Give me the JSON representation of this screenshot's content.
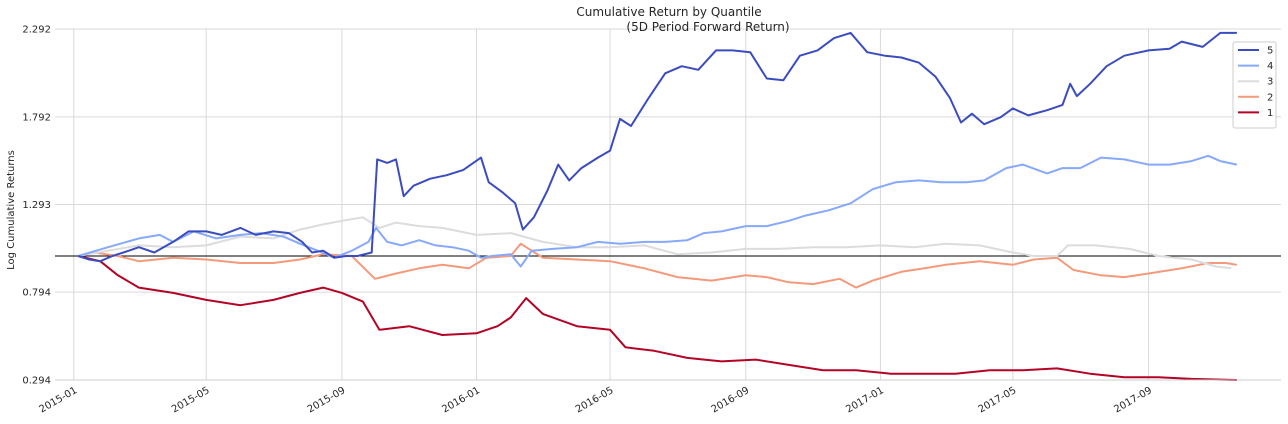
{
  "chart_data": {
    "type": "line",
    "title": "Cumulative Return by Quantile",
    "subtitle": "(5D Period Forward Return)",
    "xlabel": "",
    "ylabel": "Log Cumulative Returns",
    "x_tick_labels": [
      "2015-01",
      "2015-05",
      "2015-09",
      "2016-01",
      "2016-05",
      "2016-09",
      "2017-01",
      "2017-05",
      "2017-09"
    ],
    "y_tick_labels": [
      "0.294",
      "0.794",
      "1.293",
      "1.792",
      "2.292"
    ],
    "ylim": [
      0.294,
      2.292
    ],
    "xlim": [
      "2014-12-15",
      "2017-12-30"
    ],
    "grid": true,
    "legend_position": "top-right",
    "reference_line": 1.0,
    "series": [
      {
        "name": "5",
        "color": "#3b4cc0",
        "points": [
          [
            "2015-01-05",
            1.0
          ],
          [
            "2015-01-15",
            0.98
          ],
          [
            "2015-01-25",
            0.97
          ],
          [
            "2015-02-05",
            1.0
          ],
          [
            "2015-02-15",
            1.02
          ],
          [
            "2015-03-01",
            1.05
          ],
          [
            "2015-03-15",
            1.02
          ],
          [
            "2015-04-01",
            1.08
          ],
          [
            "2015-04-15",
            1.14
          ],
          [
            "2015-05-01",
            1.14
          ],
          [
            "2015-05-15",
            1.12
          ],
          [
            "2015-06-01",
            1.16
          ],
          [
            "2015-06-15",
            1.12
          ],
          [
            "2015-07-01",
            1.14
          ],
          [
            "2015-07-15",
            1.13
          ],
          [
            "2015-07-27",
            1.08
          ],
          [
            "2015-08-05",
            1.02
          ],
          [
            "2015-08-15",
            1.03
          ],
          [
            "2015-08-25",
            0.99
          ],
          [
            "2015-09-05",
            1.0
          ],
          [
            "2015-09-15",
            1.0
          ],
          [
            "2015-09-28",
            1.02
          ],
          [
            "2015-10-03",
            1.55
          ],
          [
            "2015-10-12",
            1.53
          ],
          [
            "2015-10-20",
            1.55
          ],
          [
            "2015-10-27",
            1.34
          ],
          [
            "2015-11-05",
            1.4
          ],
          [
            "2015-11-20",
            1.44
          ],
          [
            "2015-12-05",
            1.46
          ],
          [
            "2015-12-20",
            1.49
          ],
          [
            "2016-01-05",
            1.56
          ],
          [
            "2016-01-12",
            1.42
          ],
          [
            "2016-01-25",
            1.36
          ],
          [
            "2016-02-05",
            1.3
          ],
          [
            "2016-02-12",
            1.15
          ],
          [
            "2016-02-22",
            1.22
          ],
          [
            "2016-03-05",
            1.37
          ],
          [
            "2016-03-15",
            1.52
          ],
          [
            "2016-03-25",
            1.43
          ],
          [
            "2016-04-05",
            1.5
          ],
          [
            "2016-04-20",
            1.56
          ],
          [
            "2016-05-01",
            1.6
          ],
          [
            "2016-05-10",
            1.78
          ],
          [
            "2016-05-20",
            1.74
          ],
          [
            "2016-06-05",
            1.9
          ],
          [
            "2016-06-20",
            2.04
          ],
          [
            "2016-07-05",
            2.08
          ],
          [
            "2016-07-20",
            2.06
          ],
          [
            "2016-08-05",
            2.17
          ],
          [
            "2016-08-20",
            2.17
          ],
          [
            "2016-09-05",
            2.16
          ],
          [
            "2016-09-20",
            2.01
          ],
          [
            "2016-10-05",
            2.0
          ],
          [
            "2016-10-20",
            2.14
          ],
          [
            "2016-11-05",
            2.17
          ],
          [
            "2016-11-20",
            2.24
          ],
          [
            "2016-12-05",
            2.27
          ],
          [
            "2016-12-20",
            2.16
          ],
          [
            "2017-01-05",
            2.14
          ],
          [
            "2017-01-20",
            2.13
          ],
          [
            "2017-02-05",
            2.1
          ],
          [
            "2017-02-20",
            2.02
          ],
          [
            "2017-03-05",
            1.9
          ],
          [
            "2017-03-15",
            1.76
          ],
          [
            "2017-03-25",
            1.81
          ],
          [
            "2017-04-05",
            1.75
          ],
          [
            "2017-04-20",
            1.79
          ],
          [
            "2017-05-01",
            1.84
          ],
          [
            "2017-05-15",
            1.8
          ],
          [
            "2017-06-01",
            1.83
          ],
          [
            "2017-06-15",
            1.86
          ],
          [
            "2017-06-22",
            1.98
          ],
          [
            "2017-06-28",
            1.91
          ],
          [
            "2017-07-10",
            1.98
          ],
          [
            "2017-07-25",
            2.08
          ],
          [
            "2017-08-10",
            2.14
          ],
          [
            "2017-09-01",
            2.17
          ],
          [
            "2017-09-20",
            2.18
          ],
          [
            "2017-10-01",
            2.22
          ],
          [
            "2017-10-20",
            2.19
          ],
          [
            "2017-11-05",
            2.27
          ],
          [
            "2017-11-20",
            2.27
          ]
        ]
      },
      {
        "name": "4",
        "color": "#86a9fc",
        "points": [
          [
            "2015-01-05",
            1.0
          ],
          [
            "2015-02-01",
            1.05
          ],
          [
            "2015-03-01",
            1.1
          ],
          [
            "2015-03-20",
            1.12
          ],
          [
            "2015-04-01",
            1.08
          ],
          [
            "2015-04-20",
            1.14
          ],
          [
            "2015-05-10",
            1.1
          ],
          [
            "2015-06-01",
            1.12
          ],
          [
            "2015-06-20",
            1.13
          ],
          [
            "2015-07-10",
            1.11
          ],
          [
            "2015-07-25",
            1.07
          ],
          [
            "2015-08-10",
            1.03
          ],
          [
            "2015-08-25",
            0.99
          ],
          [
            "2015-09-10",
            1.03
          ],
          [
            "2015-09-25",
            1.08
          ],
          [
            "2015-10-02",
            1.16
          ],
          [
            "2015-10-12",
            1.08
          ],
          [
            "2015-10-25",
            1.06
          ],
          [
            "2015-11-10",
            1.09
          ],
          [
            "2015-11-25",
            1.06
          ],
          [
            "2015-12-10",
            1.05
          ],
          [
            "2015-12-25",
            1.03
          ],
          [
            "2016-01-05",
            0.99
          ],
          [
            "2016-01-15",
            1.0
          ],
          [
            "2016-02-01",
            1.01
          ],
          [
            "2016-02-10",
            0.94
          ],
          [
            "2016-02-20",
            1.03
          ],
          [
            "2016-03-10",
            1.04
          ],
          [
            "2016-04-01",
            1.05
          ],
          [
            "2016-04-20",
            1.08
          ],
          [
            "2016-05-10",
            1.07
          ],
          [
            "2016-06-01",
            1.08
          ],
          [
            "2016-06-20",
            1.08
          ],
          [
            "2016-07-10",
            1.09
          ],
          [
            "2016-07-25",
            1.13
          ],
          [
            "2016-08-10",
            1.14
          ],
          [
            "2016-09-01",
            1.17
          ],
          [
            "2016-09-20",
            1.17
          ],
          [
            "2016-10-10",
            1.2
          ],
          [
            "2016-10-25",
            1.23
          ],
          [
            "2016-11-15",
            1.26
          ],
          [
            "2016-12-05",
            1.3
          ],
          [
            "2016-12-25",
            1.38
          ],
          [
            "2017-01-15",
            1.42
          ],
          [
            "2017-02-05",
            1.43
          ],
          [
            "2017-02-25",
            1.42
          ],
          [
            "2017-03-20",
            1.42
          ],
          [
            "2017-04-05",
            1.43
          ],
          [
            "2017-04-25",
            1.5
          ],
          [
            "2017-05-10",
            1.52
          ],
          [
            "2017-06-01",
            1.47
          ],
          [
            "2017-06-15",
            1.5
          ],
          [
            "2017-07-01",
            1.5
          ],
          [
            "2017-07-20",
            1.56
          ],
          [
            "2017-08-10",
            1.55
          ],
          [
            "2017-09-01",
            1.52
          ],
          [
            "2017-09-20",
            1.52
          ],
          [
            "2017-10-10",
            1.54
          ],
          [
            "2017-10-25",
            1.57
          ],
          [
            "2017-11-05",
            1.54
          ],
          [
            "2017-11-20",
            1.52
          ]
        ]
      },
      {
        "name": "3",
        "color": "#dddcdc",
        "points": [
          [
            "2015-01-05",
            1.0
          ],
          [
            "2015-02-01",
            1.03
          ],
          [
            "2015-03-01",
            1.06
          ],
          [
            "2015-04-01",
            1.05
          ],
          [
            "2015-05-01",
            1.06
          ],
          [
            "2015-06-01",
            1.11
          ],
          [
            "2015-07-01",
            1.1
          ],
          [
            "2015-07-25",
            1.15
          ],
          [
            "2015-08-15",
            1.18
          ],
          [
            "2015-09-01",
            1.2
          ],
          [
            "2015-09-20",
            1.22
          ],
          [
            "2015-10-05",
            1.16
          ],
          [
            "2015-10-20",
            1.19
          ],
          [
            "2015-11-10",
            1.17
          ],
          [
            "2015-12-01",
            1.16
          ],
          [
            "2016-01-01",
            1.12
          ],
          [
            "2016-02-01",
            1.13
          ],
          [
            "2016-03-01",
            1.08
          ],
          [
            "2016-04-01",
            1.05
          ],
          [
            "2016-05-01",
            1.05
          ],
          [
            "2016-06-01",
            1.06
          ],
          [
            "2016-07-01",
            1.01
          ],
          [
            "2016-08-01",
            1.02
          ],
          [
            "2016-09-01",
            1.04
          ],
          [
            "2016-10-01",
            1.04
          ],
          [
            "2016-11-01",
            1.05
          ],
          [
            "2016-12-01",
            1.05
          ],
          [
            "2017-01-01",
            1.06
          ],
          [
            "2017-02-01",
            1.05
          ],
          [
            "2017-03-01",
            1.07
          ],
          [
            "2017-04-01",
            1.06
          ],
          [
            "2017-05-01",
            1.02
          ],
          [
            "2017-05-20",
            1.0
          ],
          [
            "2017-06-10",
            1.0
          ],
          [
            "2017-06-20",
            1.06
          ],
          [
            "2017-07-15",
            1.06
          ],
          [
            "2017-08-15",
            1.04
          ],
          [
            "2017-09-10",
            1.0
          ],
          [
            "2017-10-10",
            0.98
          ],
          [
            "2017-11-01",
            0.94
          ],
          [
            "2017-11-15",
            0.93
          ]
        ]
      },
      {
        "name": "2",
        "color": "#f49a7b",
        "points": [
          [
            "2015-01-05",
            1.0
          ],
          [
            "2015-01-20",
            1.02
          ],
          [
            "2015-02-10",
            1.0
          ],
          [
            "2015-03-01",
            0.97
          ],
          [
            "2015-04-01",
            0.99
          ],
          [
            "2015-05-01",
            0.98
          ],
          [
            "2015-06-01",
            0.96
          ],
          [
            "2015-07-01",
            0.96
          ],
          [
            "2015-07-25",
            0.98
          ],
          [
            "2015-08-15",
            1.01
          ],
          [
            "2015-09-10",
            1.0
          ],
          [
            "2015-10-01",
            0.87
          ],
          [
            "2015-10-20",
            0.9
          ],
          [
            "2015-11-10",
            0.93
          ],
          [
            "2015-12-01",
            0.95
          ],
          [
            "2015-12-25",
            0.93
          ],
          [
            "2016-01-10",
            0.99
          ],
          [
            "2016-02-01",
            1.0
          ],
          [
            "2016-02-10",
            1.07
          ],
          [
            "2016-03-01",
            0.99
          ],
          [
            "2016-04-01",
            0.98
          ],
          [
            "2016-05-01",
            0.97
          ],
          [
            "2016-06-01",
            0.93
          ],
          [
            "2016-07-01",
            0.88
          ],
          [
            "2016-08-01",
            0.86
          ],
          [
            "2016-09-01",
            0.89
          ],
          [
            "2016-09-20",
            0.88
          ],
          [
            "2016-10-10",
            0.85
          ],
          [
            "2016-11-01",
            0.84
          ],
          [
            "2016-11-25",
            0.87
          ],
          [
            "2016-12-10",
            0.82
          ],
          [
            "2016-12-25",
            0.86
          ],
          [
            "2017-01-20",
            0.91
          ],
          [
            "2017-02-10",
            0.93
          ],
          [
            "2017-03-01",
            0.95
          ],
          [
            "2017-04-01",
            0.97
          ],
          [
            "2017-05-01",
            0.95
          ],
          [
            "2017-05-20",
            0.98
          ],
          [
            "2017-06-10",
            0.99
          ],
          [
            "2017-06-25",
            0.92
          ],
          [
            "2017-07-20",
            0.89
          ],
          [
            "2017-08-10",
            0.88
          ],
          [
            "2017-09-01",
            0.9
          ],
          [
            "2017-10-01",
            0.93
          ],
          [
            "2017-10-25",
            0.96
          ],
          [
            "2017-11-10",
            0.96
          ],
          [
            "2017-11-20",
            0.95
          ]
        ]
      },
      {
        "name": "1",
        "color": "#b40426",
        "points": [
          [
            "2015-01-05",
            1.0
          ],
          [
            "2015-01-25",
            0.97
          ],
          [
            "2015-02-10",
            0.89
          ],
          [
            "2015-03-01",
            0.82
          ],
          [
            "2015-04-01",
            0.79
          ],
          [
            "2015-05-01",
            0.75
          ],
          [
            "2015-06-01",
            0.72
          ],
          [
            "2015-07-01",
            0.75
          ],
          [
            "2015-07-25",
            0.79
          ],
          [
            "2015-08-15",
            0.82
          ],
          [
            "2015-09-01",
            0.79
          ],
          [
            "2015-09-20",
            0.74
          ],
          [
            "2015-10-05",
            0.58
          ],
          [
            "2015-11-01",
            0.6
          ],
          [
            "2015-12-01",
            0.55
          ],
          [
            "2016-01-01",
            0.56
          ],
          [
            "2016-01-20",
            0.6
          ],
          [
            "2016-02-01",
            0.65
          ],
          [
            "2016-02-15",
            0.76
          ],
          [
            "2016-03-01",
            0.67
          ],
          [
            "2016-04-01",
            0.6
          ],
          [
            "2016-05-01",
            0.58
          ],
          [
            "2016-05-15",
            0.48
          ],
          [
            "2016-06-10",
            0.46
          ],
          [
            "2016-07-10",
            0.42
          ],
          [
            "2016-08-10",
            0.4
          ],
          [
            "2016-09-10",
            0.41
          ],
          [
            "2016-10-10",
            0.38
          ],
          [
            "2016-11-10",
            0.35
          ],
          [
            "2016-12-10",
            0.35
          ],
          [
            "2017-01-10",
            0.33
          ],
          [
            "2017-02-10",
            0.33
          ],
          [
            "2017-03-10",
            0.33
          ],
          [
            "2017-04-10",
            0.35
          ],
          [
            "2017-05-10",
            0.35
          ],
          [
            "2017-06-10",
            0.36
          ],
          [
            "2017-07-10",
            0.33
          ],
          [
            "2017-08-10",
            0.31
          ],
          [
            "2017-09-10",
            0.31
          ],
          [
            "2017-10-10",
            0.3
          ],
          [
            "2017-11-10",
            0.295
          ],
          [
            "2017-11-20",
            0.294
          ]
        ]
      }
    ]
  }
}
